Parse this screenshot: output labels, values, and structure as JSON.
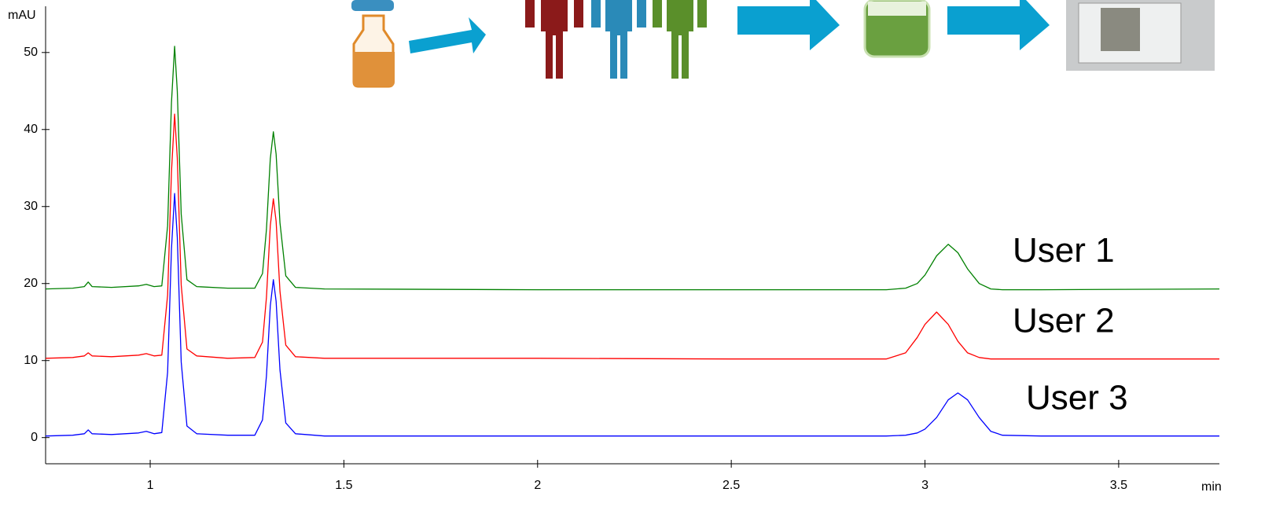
{
  "chart_data": {
    "type": "line",
    "ylabel": "mAU",
    "xlabel": "min",
    "x": [
      0.73,
      0.8,
      0.83,
      0.84,
      0.85,
      0.9,
      0.97,
      0.99,
      1.01,
      1.03,
      1.045,
      1.055,
      1.063,
      1.07,
      1.08,
      1.095,
      1.12,
      1.2,
      1.27,
      1.29,
      1.3,
      1.31,
      1.318,
      1.325,
      1.335,
      1.35,
      1.375,
      1.45,
      2.0,
      2.5,
      2.9,
      2.95,
      2.98,
      3.0,
      3.03,
      3.06,
      3.085,
      3.11,
      3.14,
      3.17,
      3.2,
      3.3,
      3.76
    ],
    "series": [
      {
        "name": "User 1",
        "color": "#008000",
        "values": [
          19.3,
          19.4,
          19.6,
          20.2,
          19.6,
          19.5,
          19.7,
          19.9,
          19.6,
          19.7,
          27.5,
          43.5,
          50.8,
          45,
          29,
          20.5,
          19.6,
          19.4,
          19.4,
          21.3,
          27.0,
          36.2,
          39.7,
          36.8,
          27.9,
          21.0,
          19.5,
          19.3,
          19.2,
          19.2,
          19.2,
          19.4,
          20.0,
          21.1,
          23.6,
          25.1,
          24.0,
          21.9,
          20.0,
          19.3,
          19.2,
          19.2,
          19.3
        ]
      },
      {
        "name": "User 2",
        "color": "#ff0000",
        "values": [
          10.3,
          10.4,
          10.6,
          11.0,
          10.6,
          10.5,
          10.7,
          10.9,
          10.6,
          10.7,
          18.5,
          34.5,
          42,
          36.3,
          19.8,
          11.5,
          10.6,
          10.3,
          10.4,
          12.4,
          18.2,
          27.5,
          31.0,
          28.1,
          19.0,
          12.0,
          10.5,
          10.3,
          10.3,
          10.2,
          10.2,
          11.0,
          13.0,
          14.7,
          16.3,
          14.7,
          12.5,
          11.0,
          10.4,
          10.2,
          10.2,
          10.2,
          10.2
        ]
      },
      {
        "name": "User 3",
        "color": "#0000ff",
        "values": [
          0.2,
          0.3,
          0.5,
          1.0,
          0.5,
          0.4,
          0.6,
          0.8,
          0.5,
          0.65,
          8.5,
          24.5,
          31.7,
          26,
          9.8,
          1.5,
          0.5,
          0.3,
          0.3,
          2.3,
          8.0,
          17.1,
          20.5,
          17.7,
          8.8,
          1.9,
          0.5,
          0.2,
          0.2,
          0.2,
          0.2,
          0.3,
          0.6,
          1.1,
          2.6,
          4.9,
          5.8,
          4.9,
          2.6,
          0.8,
          0.3,
          0.2,
          0.2
        ]
      }
    ],
    "xlim": [
      0.73,
      3.76
    ],
    "xticks": [
      1,
      1.5,
      2,
      2.5,
      3,
      3.5
    ],
    "ylim": [
      -3.4,
      56
    ],
    "yticks": [
      0,
      10,
      20,
      30,
      40,
      50
    ],
    "grid": false
  }
}
